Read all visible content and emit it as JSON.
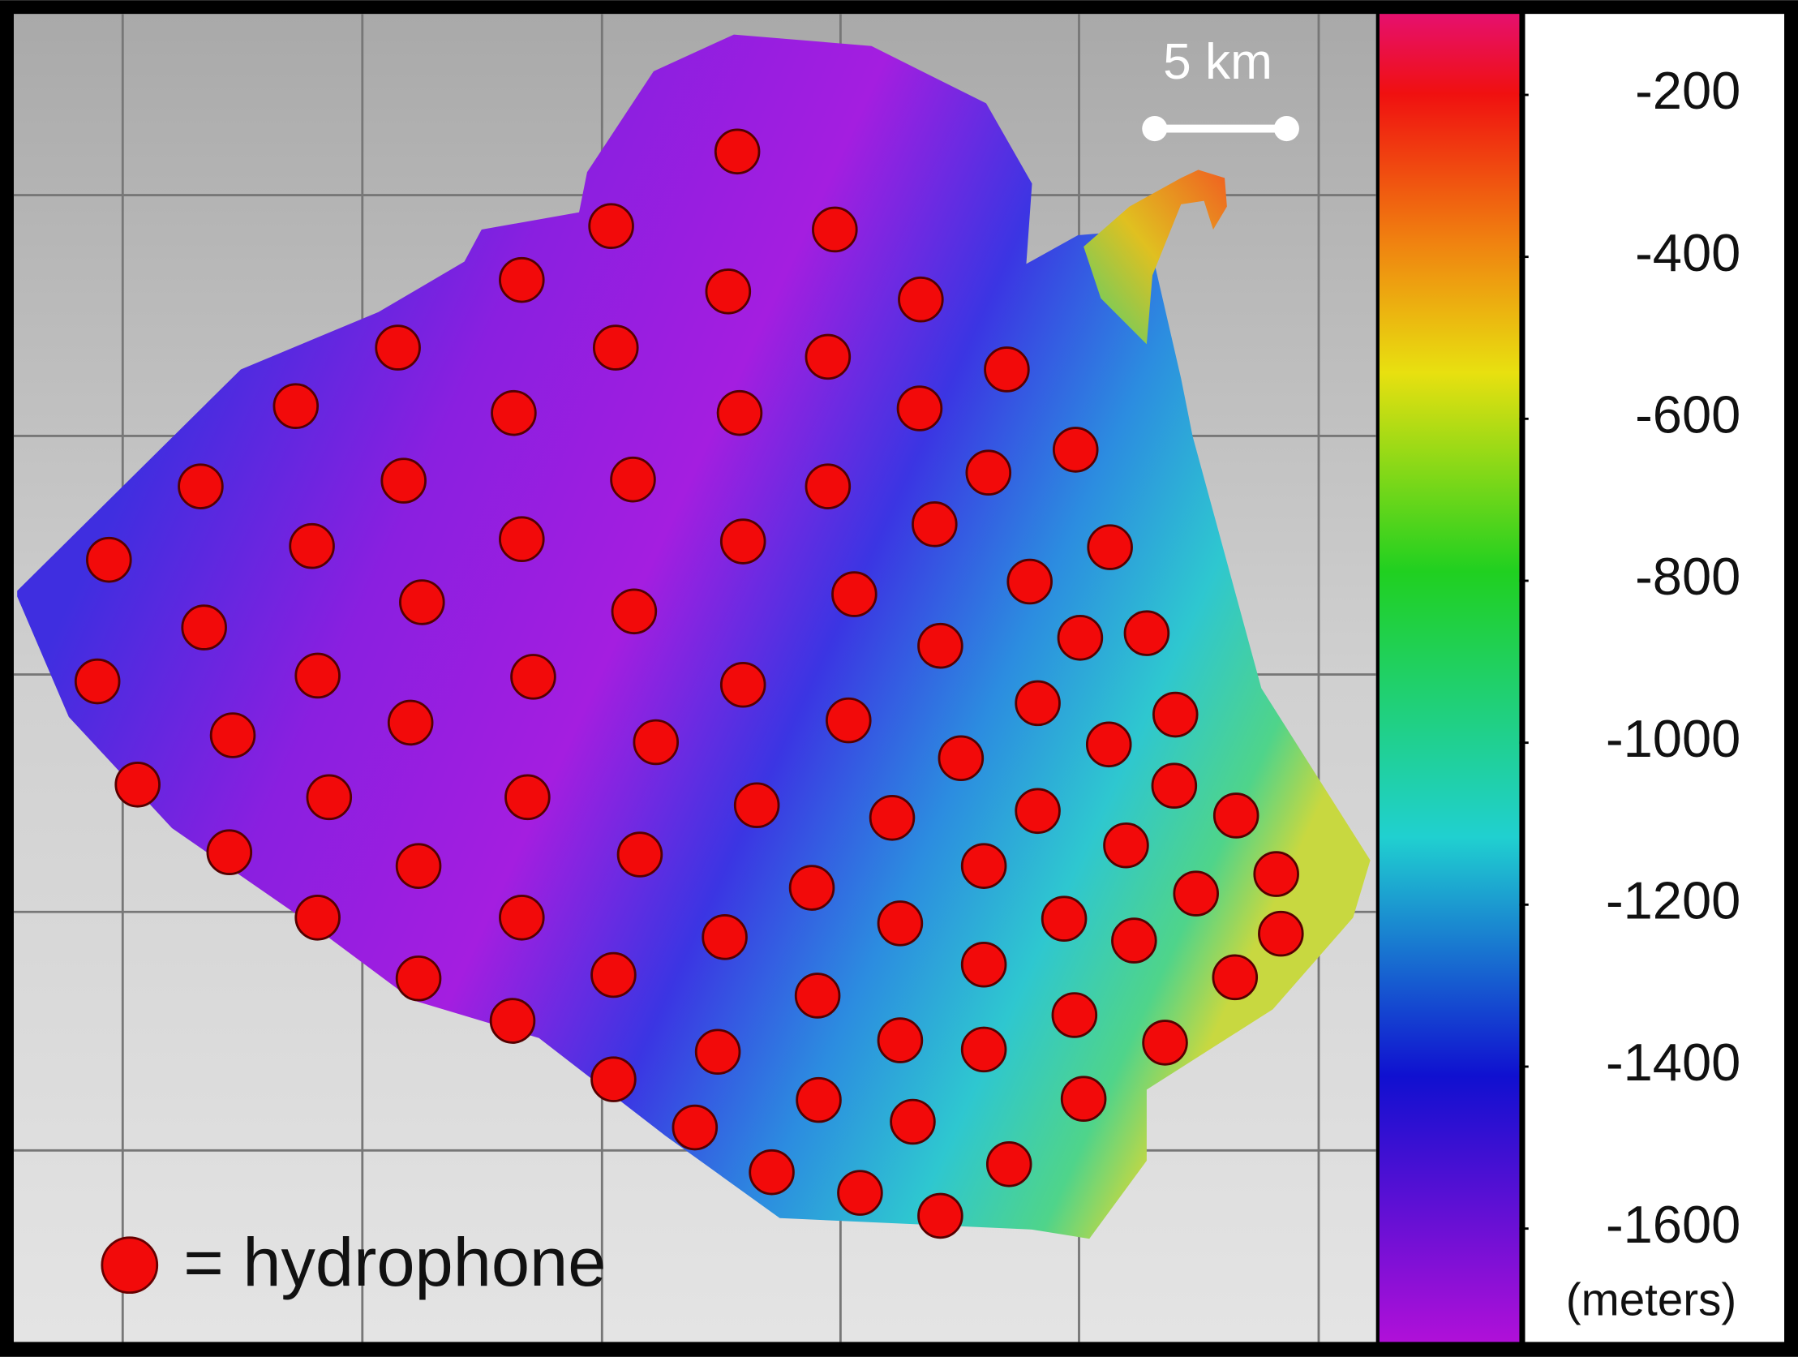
{
  "map": {
    "scale_bar": {
      "label": "5 km"
    },
    "legend": {
      "label": "= hydrophone"
    },
    "colorbar": {
      "lim": [
        -100,
        -1740
      ],
      "ticks": [
        -200,
        -400,
        -600,
        -800,
        -1000,
        -1200,
        -1400,
        -1600
      ],
      "unit": "(meters)"
    }
  }
}
